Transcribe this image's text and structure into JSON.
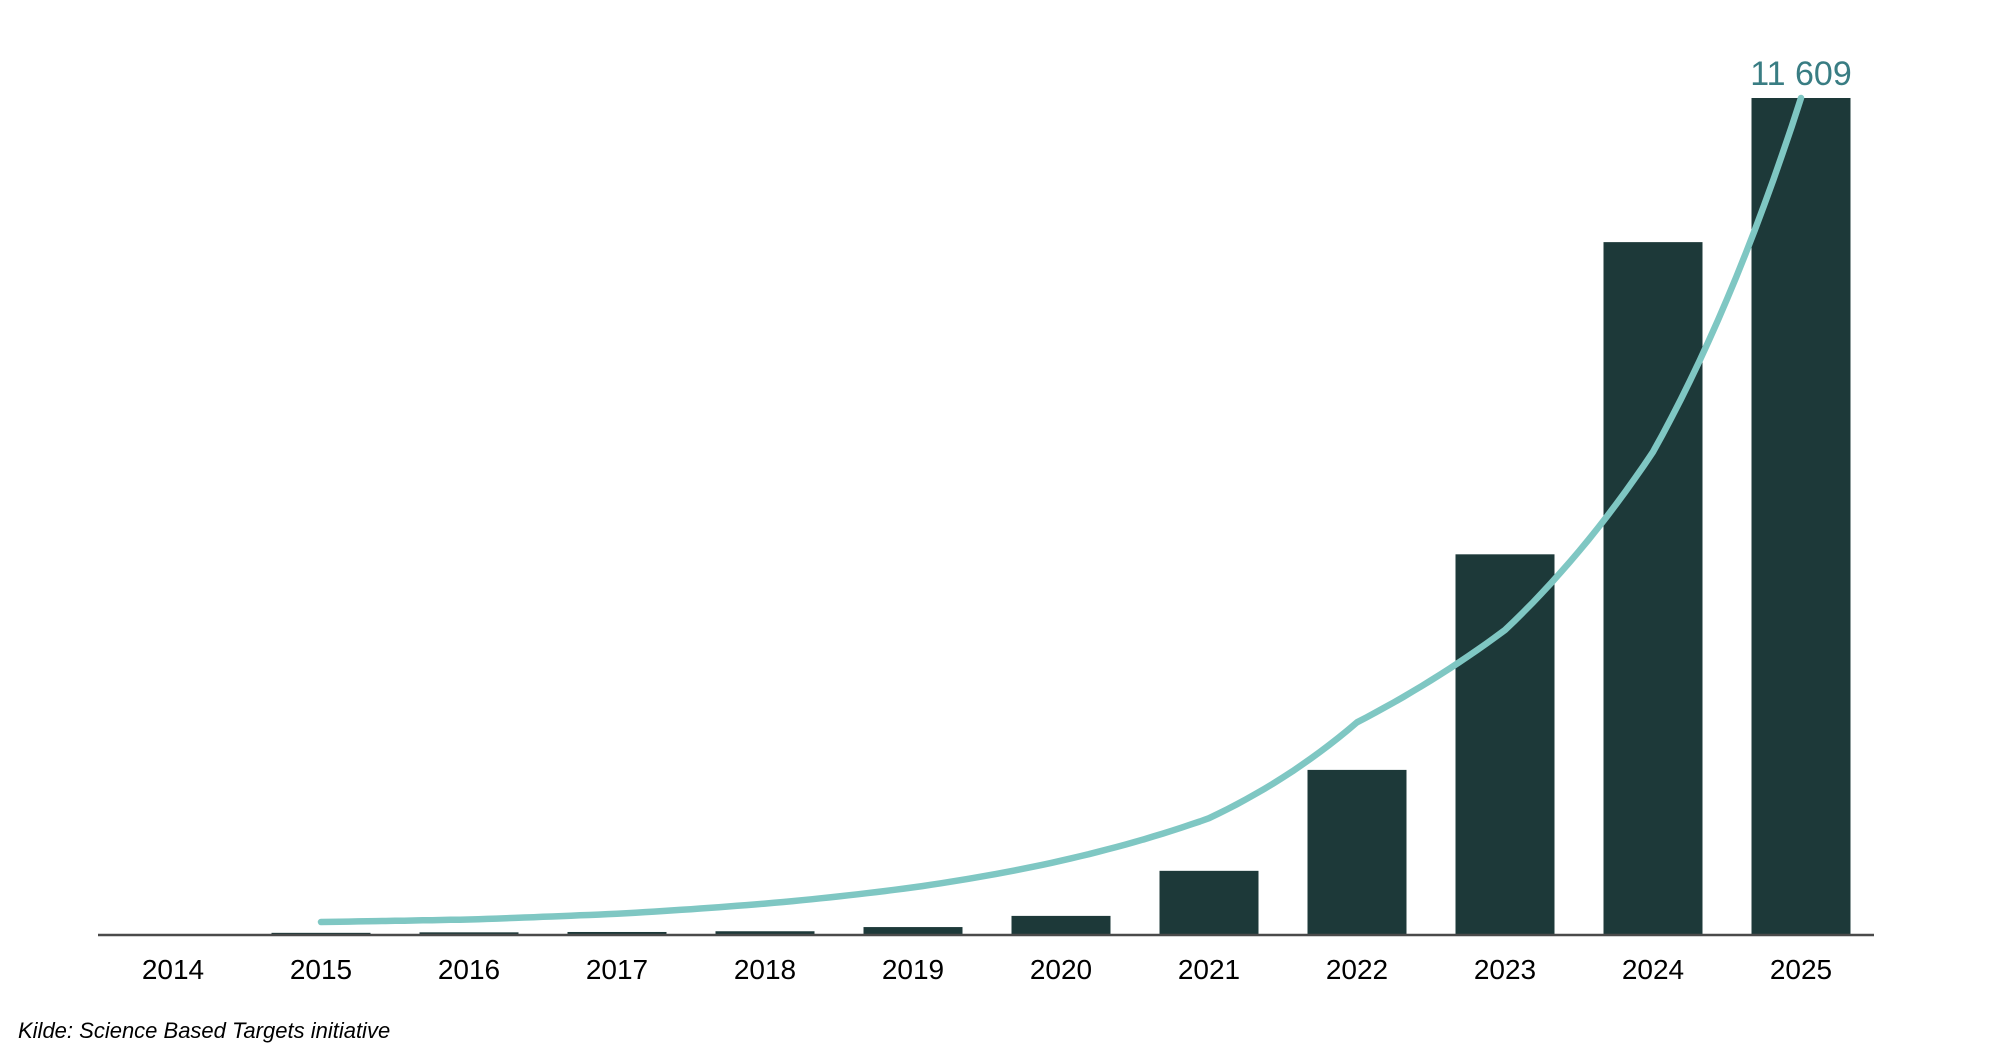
{
  "chart_data": {
    "type": "bar",
    "title": "",
    "xlabel": "",
    "ylabel": "",
    "categories": [
      "2014",
      "2015",
      "2016",
      "2017",
      "2018",
      "2019",
      "2020",
      "2021",
      "2022",
      "2023",
      "2024",
      "2025"
    ],
    "values": [
      10,
      30,
      37,
      42,
      52,
      110,
      265,
      890,
      2290,
      5280,
      9610,
      11609
    ],
    "trend_line": {
      "type": "exponential_fit",
      "categories": [
        "2015",
        "2016",
        "2017",
        "2018",
        "2019",
        "2020",
        "2021",
        "2022",
        "2023",
        "2024",
        "2025"
      ],
      "values": [
        180,
        215,
        295,
        435,
        660,
        1030,
        1620,
        2950,
        4230,
        6700,
        11609
      ]
    },
    "annotation": {
      "text": "11 609",
      "category": "2025",
      "value": 11609
    },
    "ylim": [
      0,
      11609
    ],
    "grid": false,
    "legend": "none",
    "colors": {
      "bar": "#1d3939",
      "trend": "#7fc7c3",
      "annotation": "#397d83",
      "axis": "#4a4a4a",
      "tick_label": "#000000"
    }
  },
  "source_note": "Kilde: Science Based Targets initiative"
}
